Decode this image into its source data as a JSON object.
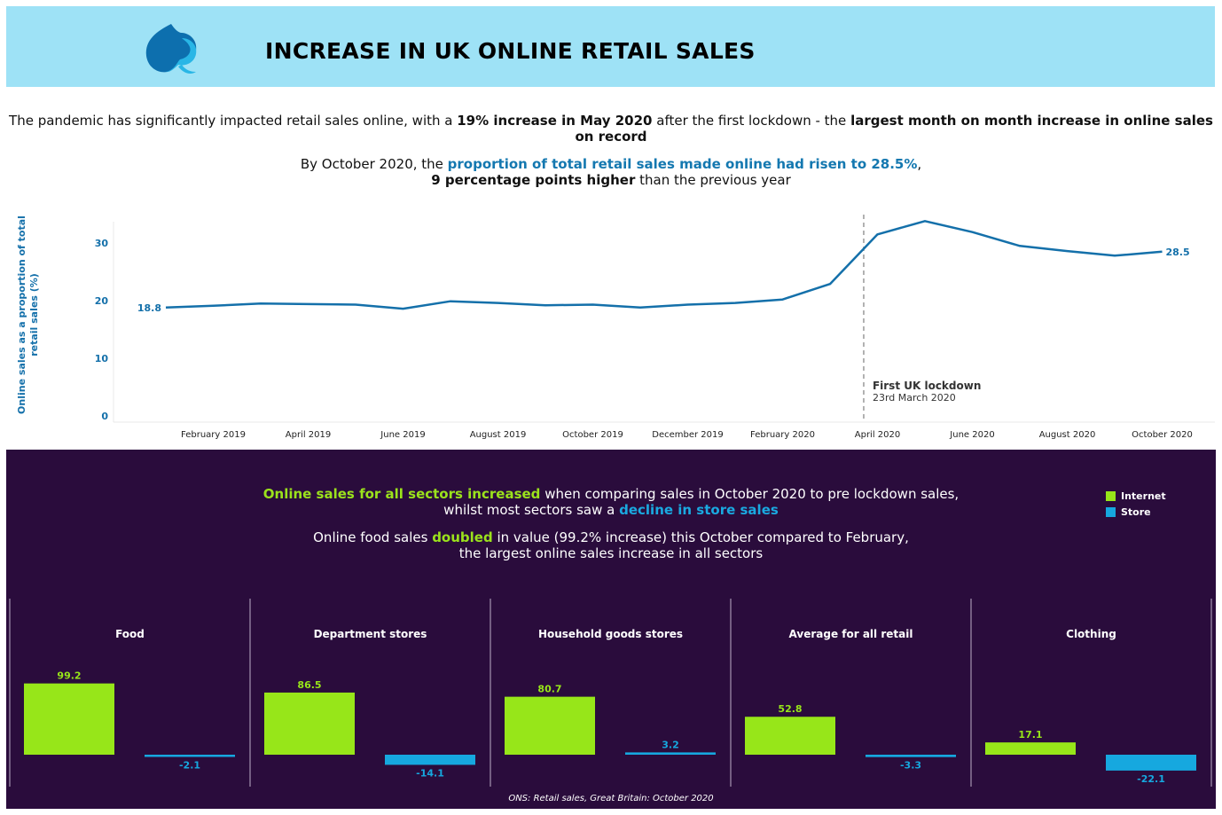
{
  "header": {
    "title": "INCREASE IN UK ONLINE RETAIL SALES",
    "logo_colors": [
      "#0d6fae",
      "#29b6e6"
    ]
  },
  "intro": {
    "p1_a": "The pandemic has significantly impacted retail sales online, with a ",
    "p1_b": "19% increase in May 2020",
    "p1_c": " after the first lockdown - the ",
    "p1_d": "largest month on month increase in online sales on record",
    "p2_a": "By October 2020, the ",
    "p2_b": "proportion of total retail sales made online had risen to 28.5%",
    "p2_c": ",",
    "p2_d": "9 percentage points higher",
    "p2_e": " than the previous year"
  },
  "chart_data": [
    {
      "type": "line",
      "ylabel": "Online sales as a proportion of total retail sales (%)",
      "yticks": [
        0,
        10,
        20,
        30
      ],
      "ylim": [
        0,
        35
      ],
      "x": [
        "2019-01",
        "2019-02",
        "2019-03",
        "2019-04",
        "2019-05",
        "2019-06",
        "2019-07",
        "2019-08",
        "2019-09",
        "2019-10",
        "2019-11",
        "2019-12",
        "2020-01",
        "2020-02",
        "2020-03",
        "2020-04",
        "2020-05",
        "2020-06",
        "2020-07",
        "2020-08",
        "2020-09",
        "2020-10"
      ],
      "xtick_labels": [
        "February 2019",
        "April 2019",
        "June 2019",
        "August 2019",
        "October 2019",
        "December 2019",
        "February 2020",
        "April 2020",
        "June 2020",
        "August 2020",
        "October 2020"
      ],
      "xtick_months": [
        "2019-02",
        "2019-04",
        "2019-06",
        "2019-08",
        "2019-10",
        "2019-12",
        "2020-02",
        "2020-04",
        "2020-06",
        "2020-08",
        "2020-10"
      ],
      "values": [
        18.8,
        19.1,
        19.5,
        19.4,
        19.3,
        18.6,
        19.9,
        19.6,
        19.2,
        19.3,
        18.8,
        19.3,
        19.6,
        20.2,
        22.9,
        31.5,
        33.8,
        31.9,
        29.5,
        28.6,
        27.8,
        28.5
      ],
      "first_label": "18.8",
      "last_label": "28.5",
      "annotation": {
        "at": "2020-03-23",
        "title": "First UK lockdown",
        "subtitle": "23rd March 2020"
      },
      "line_color": "#1470aa",
      "grid": false
    },
    {
      "type": "bar",
      "series": [
        {
          "name": "Internet",
          "color": "#97e619"
        },
        {
          "name": "Store",
          "color": "#16a8df"
        }
      ],
      "ylim": [
        -30,
        100
      ],
      "panels": [
        {
          "title": "Food",
          "values": [
            99.2,
            -2.1
          ],
          "labels": [
            "99.2",
            "-2.1"
          ]
        },
        {
          "title": "Department stores",
          "values": [
            86.5,
            -14.1
          ],
          "labels": [
            "86.5",
            "-14.1"
          ]
        },
        {
          "title": "Household goods stores",
          "values": [
            80.7,
            3.2
          ],
          "labels": [
            "80.7",
            "3.2"
          ]
        },
        {
          "title": "Average for all retail",
          "values": [
            52.8,
            -3.3
          ],
          "labels": [
            "52.8",
            "-3.3"
          ]
        },
        {
          "title": "Clothing",
          "values": [
            17.1,
            -22.1
          ],
          "labels": [
            "17.1",
            "-22.1"
          ]
        }
      ]
    }
  ],
  "sectors": {
    "p1_a": "Online sales for all sectors increased",
    "p1_b": " when comparing sales in October 2020 to pre lockdown sales,",
    "p1_c": "whilst most sectors saw a ",
    "p1_d": "decline in store sales",
    "p2_a": "Online food sales ",
    "p2_b": "doubled",
    "p2_c": " in value (99.2% increase) this October compared to February,",
    "p2_d": "the largest online sales increase in all sectors"
  },
  "legend": {
    "internet": "Internet",
    "store": "Store"
  },
  "source": "ONS: Retail sales, Great Britain: October 2020",
  "colors": {
    "header_bg": "#9ee2f6",
    "bottom_bg": "#2a0c3c",
    "internet": "#97e619",
    "store": "#16a8df",
    "highlight_blue": "#1478b0"
  }
}
